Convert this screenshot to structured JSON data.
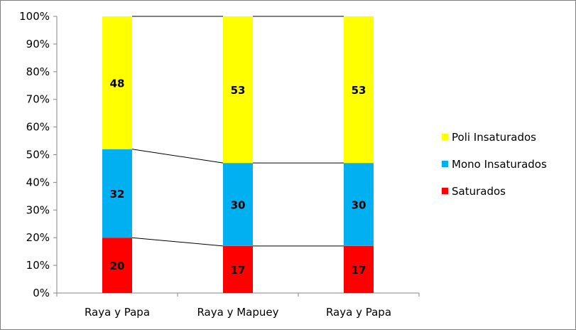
{
  "chart_data": {
    "type": "bar",
    "stacked": "percent",
    "categories": [
      "Raya y Papa",
      "Raya y Mapuey",
      "Raya y Papa"
    ],
    "series": [
      {
        "name": "Saturados",
        "values": [
          20,
          17,
          17
        ],
        "color": "#ff0000"
      },
      {
        "name": "Mono Insaturados",
        "values": [
          32,
          30,
          30
        ],
        "color": "#00b0f0"
      },
      {
        "name": "Poli Insaturados",
        "values": [
          48,
          53,
          53
        ],
        "color": "#ffff00"
      }
    ],
    "yticks": [
      "0%",
      "10%",
      "20%",
      "30%",
      "40%",
      "50%",
      "60%",
      "70%",
      "80%",
      "90%",
      "100%"
    ],
    "ylim": [
      0,
      100
    ],
    "series_lines": true,
    "grid": false,
    "legend": "right"
  }
}
